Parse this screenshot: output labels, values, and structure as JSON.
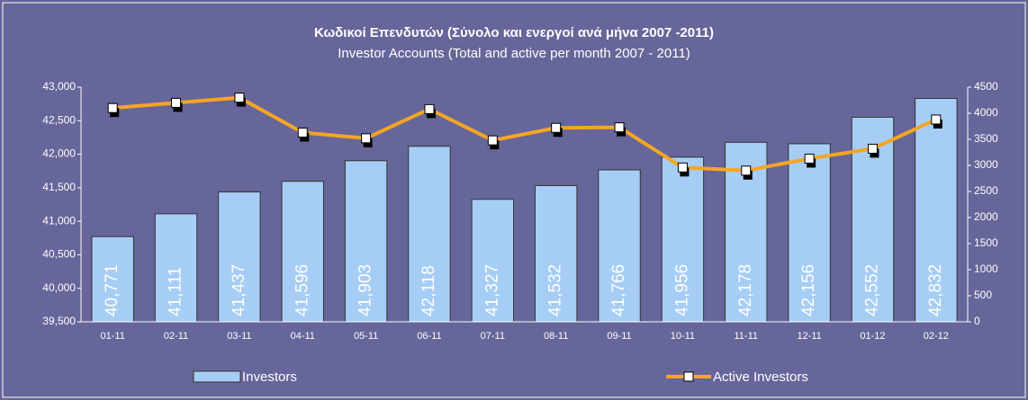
{
  "chart_data": {
    "type": "bar_line",
    "title": "Κωδικοί Επενδυτών (Σύνολο και ενεργοί ανά μήνα 2007 -2011)",
    "subtitle": "Investor Accounts (Total and active per month 2007 - 2011)",
    "categories": [
      "01-11",
      "02-11",
      "03-11",
      "04-11",
      "05-11",
      "06-11",
      "07-11",
      "08-11",
      "09-11",
      "10-11",
      "11-11",
      "12-11",
      "01-12",
      "02-12"
    ],
    "series": [
      {
        "name": "Investors",
        "color": "#a6cdf5",
        "axis": "y",
        "values": [
          40771,
          41111,
          41437,
          41596,
          41903,
          42118,
          41327,
          41532,
          41766,
          41956,
          42178,
          42156,
          42552,
          42832
        ],
        "value_labels": [
          "40,771",
          "41,111",
          "41,437",
          "41,596",
          "41,903",
          "42,118",
          "41,327",
          "41,532",
          "41,766",
          "41,956",
          "42,178",
          "42,156",
          "42,552",
          "42,832"
        ]
      },
      {
        "name": "Active Investors",
        "color": "#f5a623",
        "axis": "y2",
        "values": [
          4100,
          4200,
          4300,
          3630,
          3520,
          4080,
          3480,
          3720,
          3730,
          2960,
          2900,
          3130,
          3320,
          3880
        ]
      }
    ],
    "ylim": [
      39500,
      43000
    ],
    "yticks": [
      {
        "value": 39500,
        "label": "39,500"
      },
      {
        "value": 40000,
        "label": "40,000"
      },
      {
        "value": 40500,
        "label": "40,500"
      },
      {
        "value": 41000,
        "label": "41,000"
      },
      {
        "value": 41500,
        "label": "41,500"
      },
      {
        "value": 42000,
        "label": "42,000"
      },
      {
        "value": 42500,
        "label": "42,500"
      },
      {
        "value": 43000,
        "label": "43,000"
      }
    ],
    "y2lim": [
      0,
      4500
    ],
    "y2ticks": [
      0,
      500,
      1000,
      1500,
      2000,
      2500,
      3000,
      3500,
      4000,
      4500
    ],
    "grid": false
  }
}
